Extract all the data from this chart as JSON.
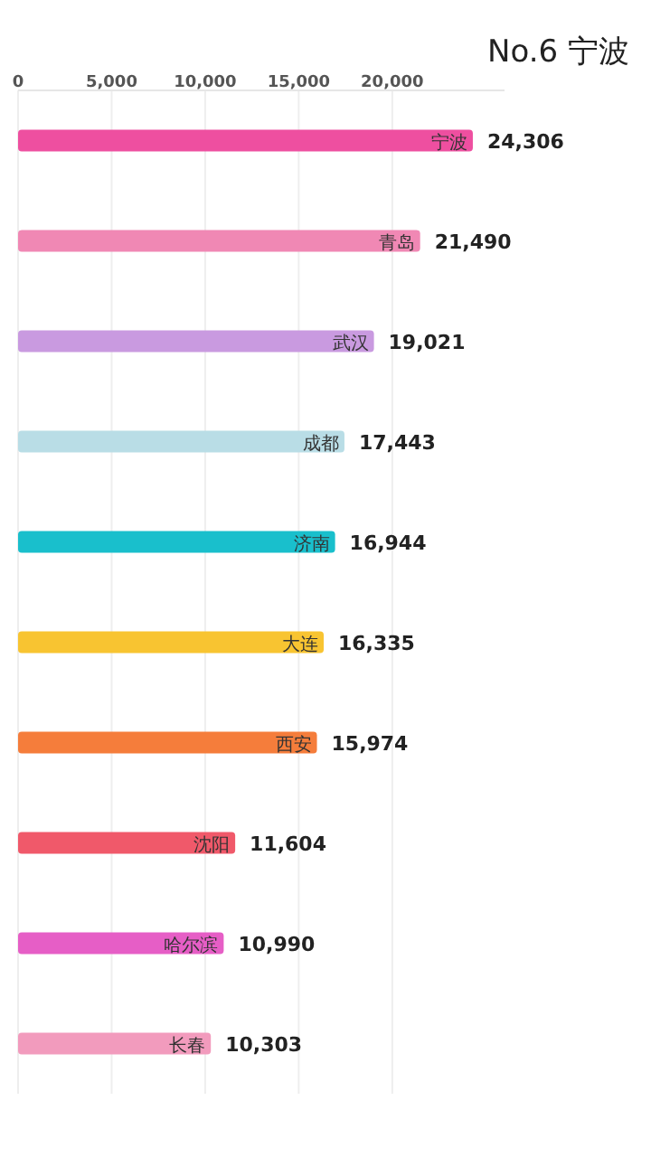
{
  "chart_data": {
    "type": "bar",
    "orientation": "horizontal",
    "title": "No.6 宁波",
    "categories": [
      "宁波",
      "青岛",
      "武汉",
      "成都",
      "济南",
      "大连",
      "西安",
      "沈阳",
      "哈尔滨",
      "长春"
    ],
    "values": [
      24306,
      21490,
      19021,
      17443,
      16944,
      16335,
      15974,
      11604,
      10990,
      10303
    ],
    "value_labels": [
      "24,306",
      "21,490",
      "19,021",
      "17,443",
      "16,944",
      "16,335",
      "15,974",
      "11,604",
      "10,990",
      "10,303"
    ],
    "colors": [
      "#ee4fa0",
      "#f088b4",
      "#c99ae0",
      "#b9dde6",
      "#19bfcc",
      "#f8c431",
      "#f57d3b",
      "#f0596a",
      "#e65ec6",
      "#f29bbd"
    ],
    "xlim": [
      0,
      26000
    ],
    "xticks": [
      {
        "value": 0,
        "label": "0"
      },
      {
        "value": 5000,
        "label": "5,000"
      },
      {
        "value": 10000,
        "label": "10,000"
      },
      {
        "value": 15000,
        "label": "15,000"
      },
      {
        "value": 20000,
        "label": "20,000"
      }
    ],
    "grid": "x"
  }
}
